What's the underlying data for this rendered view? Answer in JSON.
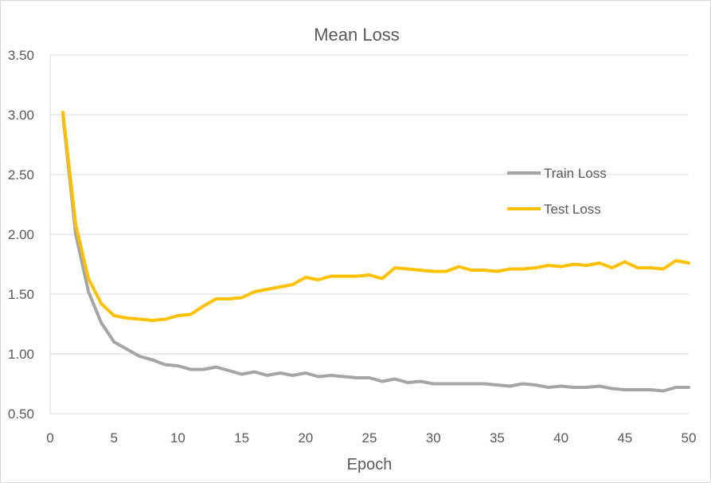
{
  "chart_data": {
    "type": "line",
    "title": "Mean Loss",
    "xlabel": "Epoch",
    "ylabel": "",
    "xlim": [
      0,
      50
    ],
    "ylim": [
      0.5,
      3.5
    ],
    "x_ticks": [
      "0",
      "5",
      "10",
      "15",
      "20",
      "25",
      "30",
      "35",
      "40",
      "45",
      "50"
    ],
    "y_ticks": [
      "0.50",
      "1.00",
      "1.50",
      "2.00",
      "2.50",
      "3.00",
      "3.50"
    ],
    "grid": "horizontal",
    "legend_position": "right",
    "x": [
      1,
      2,
      3,
      4,
      5,
      6,
      7,
      8,
      9,
      10,
      11,
      12,
      13,
      14,
      15,
      16,
      17,
      18,
      19,
      20,
      21,
      22,
      23,
      24,
      25,
      26,
      27,
      28,
      29,
      30,
      31,
      32,
      33,
      34,
      35,
      36,
      37,
      38,
      39,
      40,
      41,
      42,
      43,
      44,
      45,
      46,
      47,
      48,
      49,
      50
    ],
    "series": [
      {
        "name": "Train Loss",
        "color": "#a5a5a5",
        "values": [
          3.0,
          2.0,
          1.52,
          1.26,
          1.1,
          1.04,
          0.98,
          0.95,
          0.91,
          0.9,
          0.87,
          0.87,
          0.89,
          0.86,
          0.83,
          0.85,
          0.82,
          0.84,
          0.82,
          0.84,
          0.81,
          0.82,
          0.81,
          0.8,
          0.8,
          0.77,
          0.79,
          0.76,
          0.77,
          0.75,
          0.75,
          0.75,
          0.75,
          0.75,
          0.74,
          0.73,
          0.75,
          0.74,
          0.72,
          0.73,
          0.72,
          0.72,
          0.73,
          0.71,
          0.7,
          0.7,
          0.7,
          0.69,
          0.72,
          0.72
        ]
      },
      {
        "name": "Test Loss",
        "color": "#ffc000",
        "values": [
          3.02,
          2.08,
          1.63,
          1.42,
          1.32,
          1.3,
          1.29,
          1.28,
          1.29,
          1.32,
          1.33,
          1.4,
          1.46,
          1.46,
          1.47,
          1.52,
          1.54,
          1.56,
          1.58,
          1.64,
          1.62,
          1.65,
          1.65,
          1.65,
          1.66,
          1.63,
          1.72,
          1.71,
          1.7,
          1.69,
          1.69,
          1.73,
          1.7,
          1.7,
          1.69,
          1.71,
          1.71,
          1.72,
          1.74,
          1.73,
          1.75,
          1.74,
          1.76,
          1.72,
          1.77,
          1.72,
          1.72,
          1.71,
          1.78,
          1.76
        ]
      }
    ]
  }
}
